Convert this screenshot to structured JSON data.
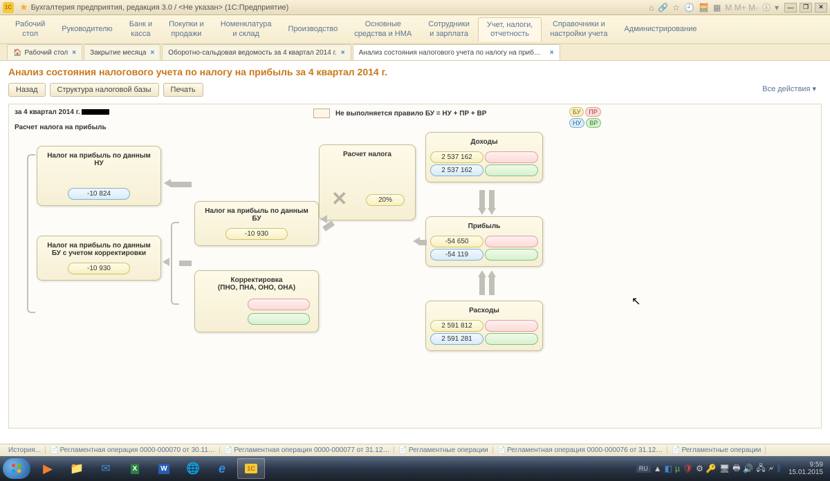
{
  "window": {
    "title": "Бухгалтерия предприятия, редакция 3.0 / <Не указан> (1С:Предприятие)"
  },
  "main_nav": [
    "Рабочий\nстол",
    "Руководителю",
    "Банк и\nкасса",
    "Покупки и\nпродажи",
    "Номенклатура\nи склад",
    "Производство",
    "Основные\nсредства и НМА",
    "Сотрудники\nи зарплата",
    "Учет, налоги,\nотчетность",
    "Справочники и\nнастройки учета",
    "Администрирование"
  ],
  "main_nav_active": 8,
  "tabs": [
    {
      "label": "Рабочий стол",
      "icon": "🏠"
    },
    {
      "label": "Закрытие месяца",
      "icon": ""
    },
    {
      "label": "Оборотно-сальдовая ведомость за 4 квартал 2014 г.",
      "icon": ""
    },
    {
      "label": "Анализ состояния налогового учета по налогу на прибыль за 4 квартал 2014 г.",
      "icon": ""
    }
  ],
  "tabs_active": 3,
  "page": {
    "title": "Анализ состояния налогового учета по налогу на прибыль за 4 квартал 2014 г.",
    "buttons": {
      "back": "Назад",
      "structure": "Структура налоговой базы",
      "print": "Печать"
    },
    "all_actions": "Все действия ▾",
    "period": "за 4 квартал 2014 г.",
    "subtitle": "Расчет налога на прибыль",
    "rule_text": "Не выполняется правило БУ = НУ + ПР + ВР",
    "legend": {
      "bu": "БУ",
      "pr": "ПР",
      "nu": "НУ",
      "vr": "ВР"
    }
  },
  "nodes": {
    "tax_nu": {
      "title": "Налог на прибыль по данным НУ",
      "val": "-10 824"
    },
    "tax_bu_corr": {
      "title": "Налог на прибыль по данным БУ с учетом корректировки",
      "val": "-10 930"
    },
    "tax_bu": {
      "title": "Налог на прибыль по данным БУ",
      "val": "-10 930"
    },
    "correction": {
      "title": "Корректировка\n(ПНО, ПНА, ОНО, ОНА)"
    },
    "calc": {
      "title": "Расчет налога",
      "pct": "20%"
    },
    "income": {
      "title": "Доходы",
      "bu": "2 537 162",
      "nu": "2 537 162"
    },
    "profit": {
      "title": "Прибыль",
      "bu": "-54 650",
      "nu": "-54 119"
    },
    "expense": {
      "title": "Расходы",
      "bu": "2 591 812",
      "nu": "2 591 281"
    }
  },
  "status_items": [
    "История...",
    "Регламентная операция 0000-000070 от 30.11…",
    "Регламентная операция 0000-000077 от 31.12…",
    "Регламентные операции",
    "Регламентная операция 0000-000076 от 31.12…",
    "Регламентные операции"
  ],
  "taskbar": {
    "lang": "RU",
    "time": "9:59",
    "date": "15.01.2015"
  }
}
